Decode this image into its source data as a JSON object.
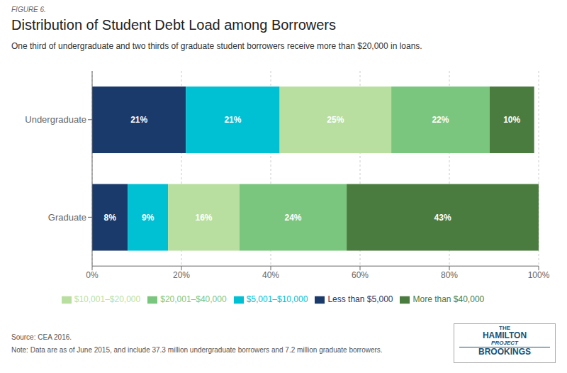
{
  "chart_data": {
    "type": "bar",
    "orientation": "horizontal",
    "stacked": true,
    "figure_label": "FIGURE 6.",
    "title": "Distribution of Student Debt Load among Borrowers",
    "subtitle": "One third of undergraduate and two thirds of graduate student borrowers receive more than $20,000 in loans.",
    "categories": [
      "Graduate",
      "Undergraduate"
    ],
    "series": [
      {
        "name": "Less than $5,000",
        "color": "#1a3a6b",
        "values": [
          8,
          21
        ],
        "value_labels": [
          "8%",
          "21%"
        ]
      },
      {
        "name": "$5,001–$10,000",
        "color": "#00c0d4",
        "values": [
          9,
          21
        ],
        "value_labels": [
          "9%",
          "21%"
        ]
      },
      {
        "name": "$10,001–$20,000",
        "color": "#b8dfa0",
        "values": [
          16,
          25
        ],
        "value_labels": [
          "16%",
          "25%"
        ]
      },
      {
        "name": "$20,001–$40,000",
        "color": "#7bc67e",
        "values": [
          24,
          22
        ],
        "value_labels": [
          "24%",
          "22%"
        ]
      },
      {
        "name": "More than $40,000",
        "color": "#4a7c3f",
        "values": [
          43,
          10
        ],
        "value_labels": [
          "43%",
          "10%"
        ]
      }
    ],
    "xlim": [
      0,
      100
    ],
    "xticks": [
      {
        "value": 0,
        "label": "0%"
      },
      {
        "value": 20,
        "label": "20%"
      },
      {
        "value": 40,
        "label": "40%"
      },
      {
        "value": 60,
        "label": "60%"
      },
      {
        "value": 80,
        "label": "80%"
      },
      {
        "value": 100,
        "label": "100%"
      }
    ],
    "grid": true,
    "legend": "bottom",
    "data_labels": true,
    "source": "Source: CEA 2016.",
    "note": "Note: Data are as of June 2015, and include 37.3 million undergraduate borrowers and 7.2 million graduate borrowers.",
    "logo": [
      "THE",
      "HAMILTON",
      "PROJECT",
      "BROOKINGS"
    ]
  }
}
